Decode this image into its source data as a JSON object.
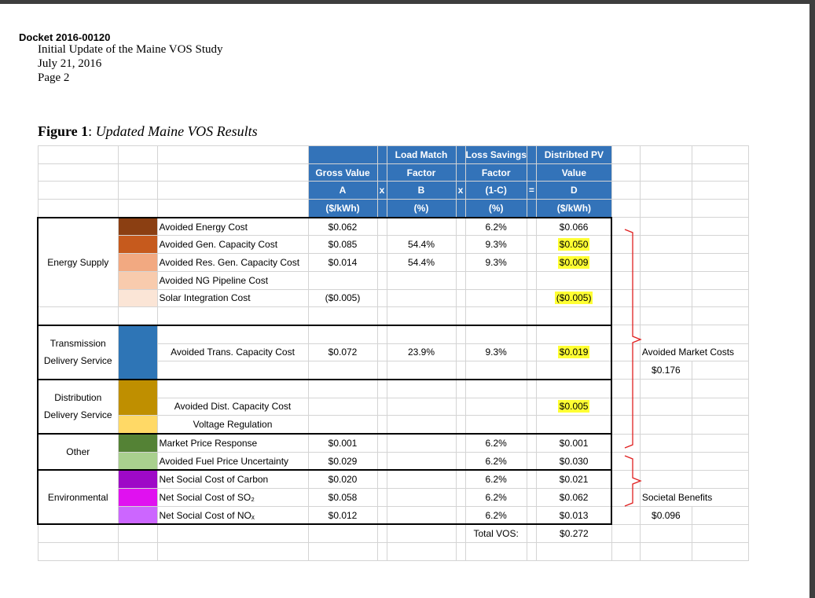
{
  "header": {
    "docket": "Docket 2016-00120",
    "line1": "Initial Update of the Maine VOS Study",
    "line2": "July 21, 2016",
    "line3": "Page 2"
  },
  "figure": {
    "label": "Figure 1",
    "colon": ":",
    "title": "Updated Maine VOS Results"
  },
  "columns": {
    "a_line1": "Load Match",
    "b_line1": "Loss Savings",
    "d_line1": "Distribted PV",
    "a_line2": "Gross Value",
    "b_line2": "Factor",
    "c_line2": "Factor",
    "d_line2": "Value",
    "a_line3": "A",
    "op1": "x",
    "b_line3": "B",
    "op2": "x",
    "c_line3": "(1-C)",
    "op3": "=",
    "d_line3": "D",
    "a_line4": "($/kWh)",
    "b_line4": "(%)",
    "c_line4": "(%)",
    "d_line4": "($/kWh)"
  },
  "categories": {
    "energy_supply": "Energy Supply",
    "transmission_1": "Transmission",
    "transmission_2": "Delivery Service",
    "distribution_1": "Distribution",
    "distribution_2": "Delivery Service",
    "other": "Other",
    "environmental": "Environmental"
  },
  "rows": [
    {
      "label": "Avoided Energy Cost",
      "color": "#8b3f12",
      "a": "$0.062",
      "b": "",
      "c": "6.2%",
      "d": "$0.066",
      "hl": false
    },
    {
      "label": "Avoided Gen. Capacity Cost",
      "color": "#c65a1d",
      "a": "$0.085",
      "b": "54.4%",
      "c": "9.3%",
      "d": "$0.050",
      "hl": true
    },
    {
      "label": "Avoided Res. Gen. Capacity Cost",
      "color": "#f2a981",
      "a": "$0.014",
      "b": "54.4%",
      "c": "9.3%",
      "d": "$0.009",
      "hl": true
    },
    {
      "label": "Avoided NG Pipeline Cost",
      "color": "#f8cbad",
      "a": "",
      "b": "",
      "c": "",
      "d": "",
      "hl": false
    },
    {
      "label": "Solar Integration Cost",
      "color": "#fbe5d6",
      "a": "($0.005)",
      "b": "",
      "c": "",
      "d": "($0.005)",
      "hl": true
    },
    {
      "label": "Avoided Trans. Capacity Cost",
      "color": "#2e75b6",
      "a": "$0.072",
      "b": "23.9%",
      "c": "9.3%",
      "d": "$0.019",
      "hl": true
    },
    {
      "label": "Avoided Dist. Capacity Cost",
      "color": "#bf8f00",
      "a": "",
      "b": "",
      "c": "",
      "d": "$0.005",
      "hl": true
    },
    {
      "label": "Voltage Regulation",
      "color": "#ffd966",
      "a": "",
      "b": "",
      "c": "",
      "d": "",
      "hl": false
    },
    {
      "label": "Market Price Response",
      "color": "#548235",
      "a": "$0.001",
      "b": "",
      "c": "6.2%",
      "d": "$0.001",
      "hl": false
    },
    {
      "label": "Avoided Fuel Price Uncertainty",
      "color": "#a9d08e",
      "a": "$0.029",
      "b": "",
      "c": "6.2%",
      "d": "$0.030",
      "hl": false
    },
    {
      "label": "Net Social Cost of Carbon",
      "color": "#9e09c7",
      "a": "$0.020",
      "b": "",
      "c": "6.2%",
      "d": "$0.021",
      "hl": false
    },
    {
      "label": "Net Social Cost of SO₂",
      "color": "#e011f0",
      "a": "$0.058",
      "b": "",
      "c": "6.2%",
      "d": "$0.062",
      "hl": false
    },
    {
      "label": "Net Social Cost of NOₓ",
      "color": "#cc66ff",
      "a": "$0.012",
      "b": "",
      "c": "6.2%",
      "d": "$0.013",
      "hl": false
    }
  ],
  "total": {
    "label": "Total VOS:",
    "value": "$0.272"
  },
  "annotations": {
    "market_label": "Avoided Market Costs",
    "market_value": "$0.176",
    "societal_label": "Societal Benefits",
    "societal_value": "$0.096"
  },
  "colors": {
    "header_blue": "#3373b9",
    "highlight": "#ffff33",
    "brace_red": "#e02020"
  }
}
